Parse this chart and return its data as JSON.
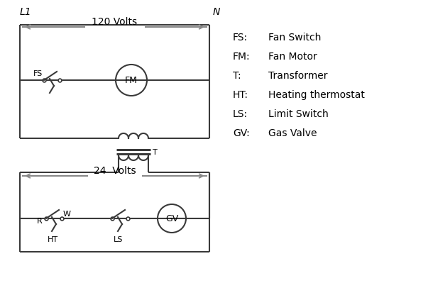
{
  "bg_color": "#ffffff",
  "line_color": "#3a3a3a",
  "arrow_color": "#888888",
  "text_color": "#000000",
  "legend": [
    [
      "FS:",
      "Fan Switch"
    ],
    [
      "FM:",
      "Fan Motor"
    ],
    [
      "T:",
      "Transformer"
    ],
    [
      "HT:",
      "Heating thermostat"
    ],
    [
      "LS:",
      "Limit Switch"
    ],
    [
      "GV:",
      "Gas Valve"
    ]
  ],
  "volts_120": "120 Volts",
  "volts_24": "24  Volts",
  "L1": "L1",
  "N": "N",
  "label_FS": "FS",
  "label_FM": "FM",
  "label_T": "T",
  "label_R": "R",
  "label_W": "W",
  "label_HT": "HT",
  "label_LS": "LS",
  "label_GV": "GV"
}
